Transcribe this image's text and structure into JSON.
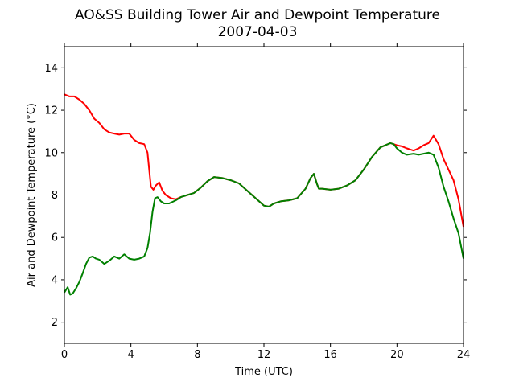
{
  "chart_data": {
    "type": "line",
    "title": "AO&SS Building Tower Air and Dewpoint Temperature",
    "subtitle": "2007-04-03",
    "xlabel": "Time (UTC)",
    "ylabel": "Air and Dewpoint Temperature (°C)",
    "xlim": [
      0,
      24
    ],
    "ylim": [
      1,
      15
    ],
    "xticks": [
      0,
      4,
      8,
      12,
      16,
      20,
      24
    ],
    "yticks": [
      2,
      4,
      6,
      8,
      10,
      12,
      14
    ],
    "grid": false,
    "legend": "none",
    "series": [
      {
        "color": "#ff0000",
        "x": [
          0,
          0.3,
          0.6,
          0.9,
          1.2,
          1.5,
          1.8,
          2.1,
          2.4,
          2.7,
          3.0,
          3.3,
          3.6,
          3.9,
          4.2,
          4.5,
          4.8,
          5.0,
          5.1,
          5.2,
          5.35,
          5.5,
          5.7,
          5.9,
          6.1,
          6.4,
          6.7,
          7.0,
          7.4,
          7.8,
          8.2,
          8.6,
          9.0,
          9.5,
          10.0,
          10.5,
          11.0,
          11.5,
          12.0,
          12.3,
          12.6,
          13.0,
          13.5,
          14.0,
          14.5,
          14.8,
          15.0,
          15.2,
          15.3,
          15.5,
          16.0,
          16.5,
          17.0,
          17.5,
          18.0,
          18.5,
          19.0,
          19.3,
          19.6,
          19.8,
          20.0,
          20.3,
          20.6,
          21.0,
          21.3,
          21.6,
          21.9,
          22.2,
          22.5,
          22.8,
          23.1,
          23.4,
          23.7,
          24.0
        ],
        "y": [
          12.75,
          12.65,
          12.65,
          12.5,
          12.3,
          12.0,
          11.6,
          11.4,
          11.1,
          10.95,
          10.9,
          10.85,
          10.9,
          10.9,
          10.6,
          10.45,
          10.4,
          10.0,
          9.2,
          8.4,
          8.25,
          8.45,
          8.6,
          8.2,
          8.0,
          7.85,
          7.8,
          7.9,
          8.0,
          8.1,
          8.35,
          8.65,
          8.85,
          8.8,
          8.7,
          8.55,
          8.2,
          7.85,
          7.5,
          7.45,
          7.6,
          7.7,
          7.75,
          7.85,
          8.3,
          8.8,
          9.0,
          8.5,
          8.3,
          8.3,
          8.25,
          8.3,
          8.45,
          8.7,
          9.2,
          9.8,
          10.25,
          10.35,
          10.45,
          10.4,
          10.35,
          10.3,
          10.2,
          10.1,
          10.2,
          10.35,
          10.45,
          10.8,
          10.4,
          9.7,
          9.2,
          8.7,
          7.8,
          6.5
        ]
      },
      {
        "color": "#008000",
        "x": [
          0,
          0.2,
          0.35,
          0.5,
          0.7,
          0.9,
          1.1,
          1.3,
          1.5,
          1.7,
          1.9,
          2.1,
          2.4,
          2.7,
          3.0,
          3.3,
          3.6,
          3.9,
          4.2,
          4.5,
          4.8,
          5.0,
          5.15,
          5.3,
          5.45,
          5.6,
          5.8,
          6.0,
          6.3,
          6.7,
          7.0,
          7.4,
          7.8,
          8.2,
          8.6,
          9.0,
          9.5,
          10.0,
          10.5,
          11.0,
          11.5,
          12.0,
          12.3,
          12.6,
          13.0,
          13.5,
          14.0,
          14.5,
          14.8,
          15.0,
          15.2,
          15.3,
          15.5,
          16.0,
          16.5,
          17.0,
          17.5,
          18.0,
          18.5,
          19.0,
          19.3,
          19.6,
          19.8,
          20.0,
          20.3,
          20.6,
          21.0,
          21.3,
          21.6,
          21.9,
          22.2,
          22.5,
          22.8,
          23.1,
          23.4,
          23.7,
          24.0
        ],
        "y": [
          3.4,
          3.65,
          3.3,
          3.35,
          3.6,
          3.9,
          4.3,
          4.75,
          5.05,
          5.1,
          5.0,
          4.95,
          4.75,
          4.9,
          5.1,
          5.0,
          5.2,
          5.0,
          4.95,
          5.0,
          5.1,
          5.5,
          6.2,
          7.2,
          7.85,
          7.9,
          7.7,
          7.6,
          7.6,
          7.75,
          7.9,
          8.0,
          8.1,
          8.35,
          8.65,
          8.85,
          8.8,
          8.7,
          8.55,
          8.2,
          7.85,
          7.5,
          7.45,
          7.6,
          7.7,
          7.75,
          7.85,
          8.3,
          8.8,
          9.0,
          8.5,
          8.3,
          8.3,
          8.25,
          8.3,
          8.45,
          8.7,
          9.2,
          9.8,
          10.25,
          10.35,
          10.45,
          10.4,
          10.2,
          10.0,
          9.9,
          9.95,
          9.9,
          9.95,
          10.0,
          9.9,
          9.3,
          8.4,
          7.7,
          6.9,
          6.2,
          5.0
        ]
      }
    ]
  }
}
